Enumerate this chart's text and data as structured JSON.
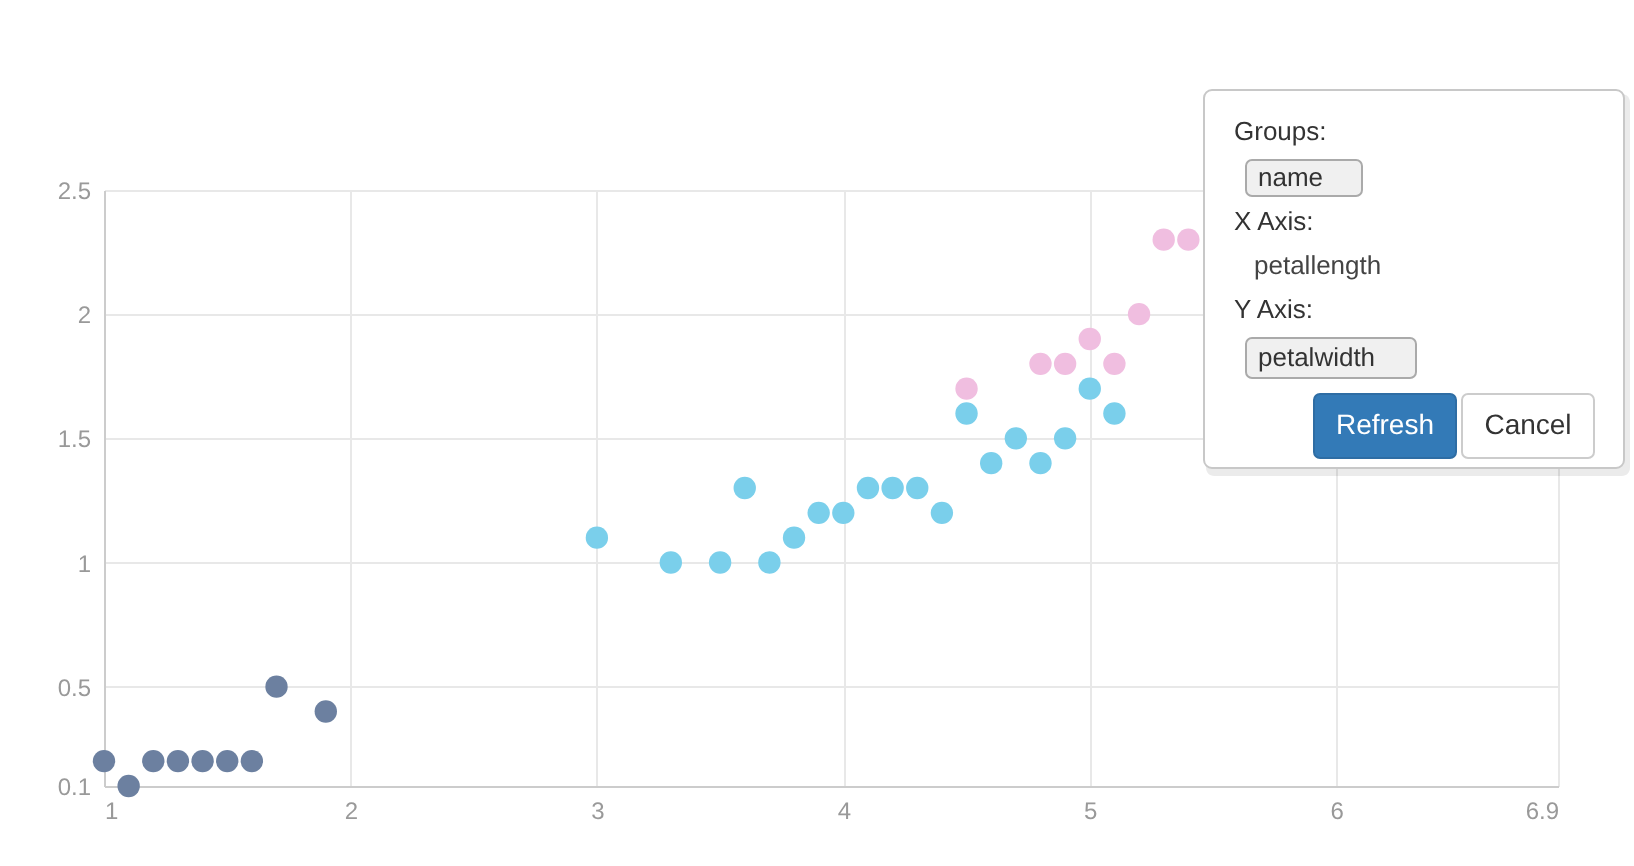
{
  "chart_data": {
    "type": "scatter",
    "marker": "circle",
    "grid": true,
    "xlim": [
      1,
      6.9
    ],
    "xticks": [
      1,
      2,
      3,
      4,
      5,
      6,
      6.9
    ],
    "ylim": [
      0.1,
      2.5
    ],
    "yticks": [
      0.1,
      0.5,
      1,
      1.5,
      2,
      2.5
    ],
    "series": [
      {
        "color": "#6c80a0",
        "x": [
          1,
          1.1,
          1.2,
          1.3,
          1.4,
          1.5,
          1.6,
          1.7,
          1.9
        ],
        "values": [
          0.2,
          0.1,
          0.2,
          0.2,
          0.2,
          0.2,
          0.2,
          0.5,
          0.4
        ]
      },
      {
        "color": "#7acfeb",
        "x": [
          3,
          3.3,
          3.5,
          3.6,
          3.7,
          3.8,
          3.9,
          4,
          4.1,
          4.2,
          4.3,
          4.4,
          4.5,
          4.6,
          4.7,
          4.8,
          4.9,
          5,
          5.1
        ],
        "values": [
          1.1,
          1,
          1,
          1.3,
          1,
          1.1,
          1.2,
          1.2,
          1.3,
          1.3,
          1.3,
          1.2,
          1.6,
          1.4,
          1.5,
          1.4,
          1.5,
          1.7,
          1.6
        ]
      },
      {
        "color": "#f0bee0",
        "x": [
          4.5,
          4.8,
          4.9,
          5,
          5.1,
          5.2,
          5.3,
          5.4
        ],
        "values": [
          1.7,
          1.8,
          1.8,
          1.9,
          1.8,
          2,
          2.3,
          2.3
        ]
      }
    ],
    "annotations": [
      "Groups:",
      "name",
      "X Axis:",
      "petallength",
      "Y Axis:",
      "petalwidth",
      "Refresh",
      "Cancel"
    ]
  }
}
